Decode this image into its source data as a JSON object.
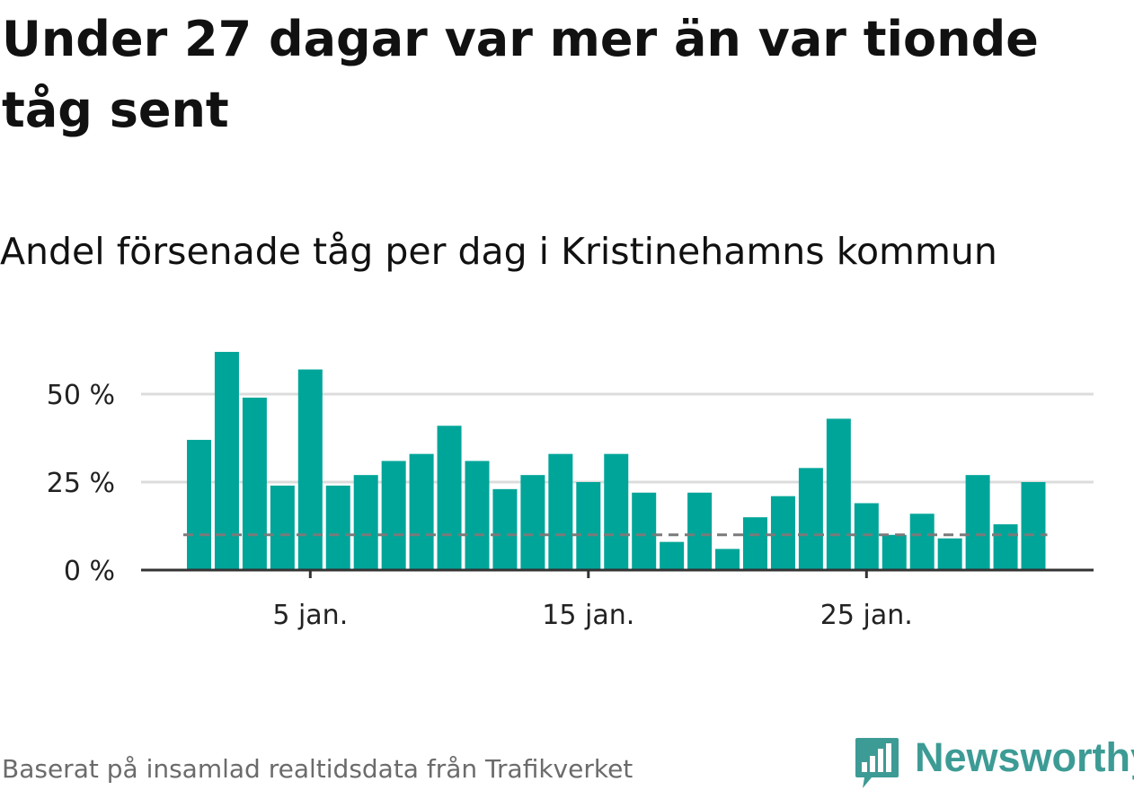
{
  "title": "Under 27 dagar var mer än var tionde tåg sent",
  "subtitle": "Andel försenade tåg per dag i Kristinehamns kommun",
  "footer": "Baserat på insamlad realtidsdata från Trafikverket",
  "brand": {
    "name": "Newsworthy",
    "color": "#3d9b95",
    "icon": "bar-chart-speech-bubble-icon"
  },
  "colors": {
    "bar": "#00a599",
    "grid": "#dcdcdc",
    "axis": "#333333",
    "reference_line": "#7a7a7a"
  },
  "chart_data": {
    "type": "bar",
    "x": [
      "1 jan.",
      "2 jan.",
      "3 jan.",
      "4 jan.",
      "5 jan.",
      "6 jan.",
      "7 jan.",
      "8 jan.",
      "9 jan.",
      "10 jan.",
      "11 jan.",
      "12 jan.",
      "13 jan.",
      "14 jan.",
      "15 jan.",
      "16 jan.",
      "17 jan.",
      "18 jan.",
      "19 jan.",
      "20 jan.",
      "21 jan.",
      "22 jan.",
      "23 jan.",
      "24 jan.",
      "25 jan.",
      "26 jan.",
      "27 jan.",
      "28 jan.",
      "29 jan.",
      "30 jan.",
      "31 jan."
    ],
    "values": [
      37,
      62,
      49,
      24,
      57,
      24,
      27,
      31,
      33,
      41,
      31,
      23,
      27,
      33,
      25,
      33,
      22,
      8,
      22,
      6,
      15,
      21,
      29,
      43,
      19,
      10,
      16,
      9,
      27,
      13,
      25
    ],
    "unit": "%",
    "ylim": [
      0,
      64
    ],
    "y_ticks": [
      0,
      25,
      50
    ],
    "y_tick_labels": [
      "0 %",
      "25 %",
      "50 %"
    ],
    "x_tick_positions": [
      "5 jan.",
      "15 jan.",
      "25 jan."
    ],
    "x_tick_labels": [
      "5 jan.",
      "15 jan.",
      "25 jan."
    ],
    "reference_line": 10,
    "grid": true
  }
}
